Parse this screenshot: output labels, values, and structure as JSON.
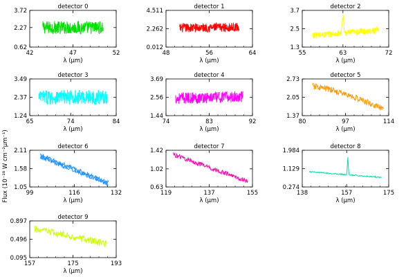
{
  "figure": {
    "ylabel": "Flux (10⁻¹⁸ W cm⁻²μm⁻¹)"
  },
  "chart_data": [
    {
      "type": "line",
      "title": "detector 0",
      "xlabel": "λ (μm)",
      "xlim": [
        42,
        52
      ],
      "xticks": [
        "42",
        "47",
        "52"
      ],
      "ylim": [
        0.62,
        3.72
      ],
      "yticks": [
        "0.62",
        "2.27",
        "3.72"
      ],
      "color": "#00e000",
      "series": [
        {
          "shape": "noise",
          "x": [
            43.5,
            50.5
          ],
          "y": [
            2.27,
            2.27
          ],
          "amp": 0.55
        }
      ]
    },
    {
      "type": "line",
      "title": "detector 1",
      "xlabel": "λ (μm)",
      "xlim": [
        48,
        64
      ],
      "xticks": [
        "48",
        "56",
        "64"
      ],
      "ylim": [
        0.012,
        4.511
      ],
      "yticks": [
        "0.012",
        "2.262",
        "4.511"
      ],
      "color": "#ff0000",
      "series": [
        {
          "shape": "noise",
          "x": [
            50.5,
            61.5
          ],
          "y": [
            2.35,
            2.45
          ],
          "amp": 0.55
        }
      ]
    },
    {
      "type": "line",
      "title": "detector 2",
      "xlabel": "λ (μm)",
      "xlim": [
        55,
        72
      ],
      "xticks": [
        "55",
        "63",
        "72"
      ],
      "ylim": [
        1.3,
        3.7
      ],
      "yticks": [
        "1.3",
        "2.5",
        "3.7"
      ],
      "color": "#ffff00",
      "series": [
        {
          "shape": "noise",
          "x": [
            57,
            70
          ],
          "y": [
            2.05,
            2.4
          ],
          "amp": 0.22,
          "peak": {
            "x": 63,
            "height": 1.05,
            "width": 0.2
          }
        }
      ]
    },
    {
      "type": "line",
      "title": "detector 3",
      "xlabel": "λ (μm)",
      "xlim": [
        65,
        84
      ],
      "xticks": [
        "65",
        "74",
        "84"
      ],
      "ylim": [
        1.24,
        3.49
      ],
      "yticks": [
        "1.24",
        "2.37",
        "3.49"
      ],
      "color": "#00ffff",
      "series": [
        {
          "shape": "noise",
          "x": [
            67,
            82
          ],
          "y": [
            2.37,
            2.37
          ],
          "amp": 0.45
        }
      ]
    },
    {
      "type": "line",
      "title": "detector 4",
      "xlabel": "λ (μm)",
      "xlim": [
        74,
        92
      ],
      "xticks": [
        "74",
        "83",
        "92"
      ],
      "ylim": [
        1.44,
        3.69
      ],
      "yticks": [
        "1.44",
        "2.56",
        "3.69"
      ],
      "color": "#ff00ff",
      "series": [
        {
          "shape": "noise",
          "x": [
            76,
            90
          ],
          "y": [
            2.5,
            2.6
          ],
          "amp": 0.35
        }
      ]
    },
    {
      "type": "line",
      "title": "detector 5",
      "xlabel": "λ (μm)",
      "xlim": [
        80,
        114
      ],
      "xticks": [
        "80",
        "97",
        "114"
      ],
      "ylim": [
        1.37,
        2.73
      ],
      "yticks": [
        "1.37",
        "2.05",
        "2.73"
      ],
      "color": "#ff9900",
      "series": [
        {
          "shape": "decay",
          "x": [
            84,
            112
          ],
          "y": [
            2.45,
            1.6
          ],
          "amp": 0.12
        }
      ]
    },
    {
      "type": "line",
      "title": "detector 6",
      "xlabel": "λ (μm)",
      "xlim": [
        99,
        132
      ],
      "xticks": [
        "99",
        "116",
        "132"
      ],
      "ylim": [
        1.05,
        2.11
      ],
      "yticks": [
        "1.05",
        "1.58",
        "2.11"
      ],
      "color": "#1e90ff",
      "series": [
        {
          "shape": "linear",
          "x": [
            103,
            129
          ],
          "y": [
            1.97,
            1.18
          ],
          "amp": 0.06
        },
        {
          "shape": "linear",
          "x": [
            103,
            129
          ],
          "y": [
            1.92,
            1.12
          ],
          "amp": 0.05
        }
      ]
    },
    {
      "type": "line",
      "title": "detector 7",
      "xlabel": "λ (μm)",
      "xlim": [
        119,
        155
      ],
      "xticks": [
        "119",
        "137",
        "155"
      ],
      "ylim": [
        0.63,
        1.42
      ],
      "yticks": [
        "0.63",
        "1.02",
        "1.42"
      ],
      "color": "#ff00aa",
      "series": [
        {
          "shape": "linear",
          "x": [
            122,
            153
          ],
          "y": [
            1.33,
            0.75
          ],
          "amp": 0.05
        }
      ]
    },
    {
      "type": "line",
      "title": "detector 8",
      "xlabel": "λ (μm)",
      "xlim": [
        138,
        175
      ],
      "xticks": [
        "138",
        "157",
        "175"
      ],
      "ylim": [
        0.274,
        1.984
      ],
      "yticks": [
        "0.274",
        "1.129",
        "1.984"
      ],
      "color": "#00e0b0",
      "series": [
        {
          "shape": "linear",
          "x": [
            141,
            172
          ],
          "y": [
            0.98,
            0.72
          ],
          "amp": 0.03,
          "peak": {
            "x": 157.5,
            "height": 0.85,
            "width": 0.25
          }
        }
      ]
    },
    {
      "type": "line",
      "title": "detector 9",
      "xlabel": "λ (μm)",
      "xlim": [
        157,
        193
      ],
      "xticks": [
        "157",
        "175",
        "193"
      ],
      "ylim": [
        0.095,
        0.897
      ],
      "yticks": [
        "0.095",
        "0.496",
        "0.897"
      ],
      "color": "#ccff00",
      "series": [
        {
          "shape": "linear",
          "x": [
            159,
            189
          ],
          "y": [
            0.72,
            0.4
          ],
          "amp": 0.08
        }
      ]
    }
  ]
}
